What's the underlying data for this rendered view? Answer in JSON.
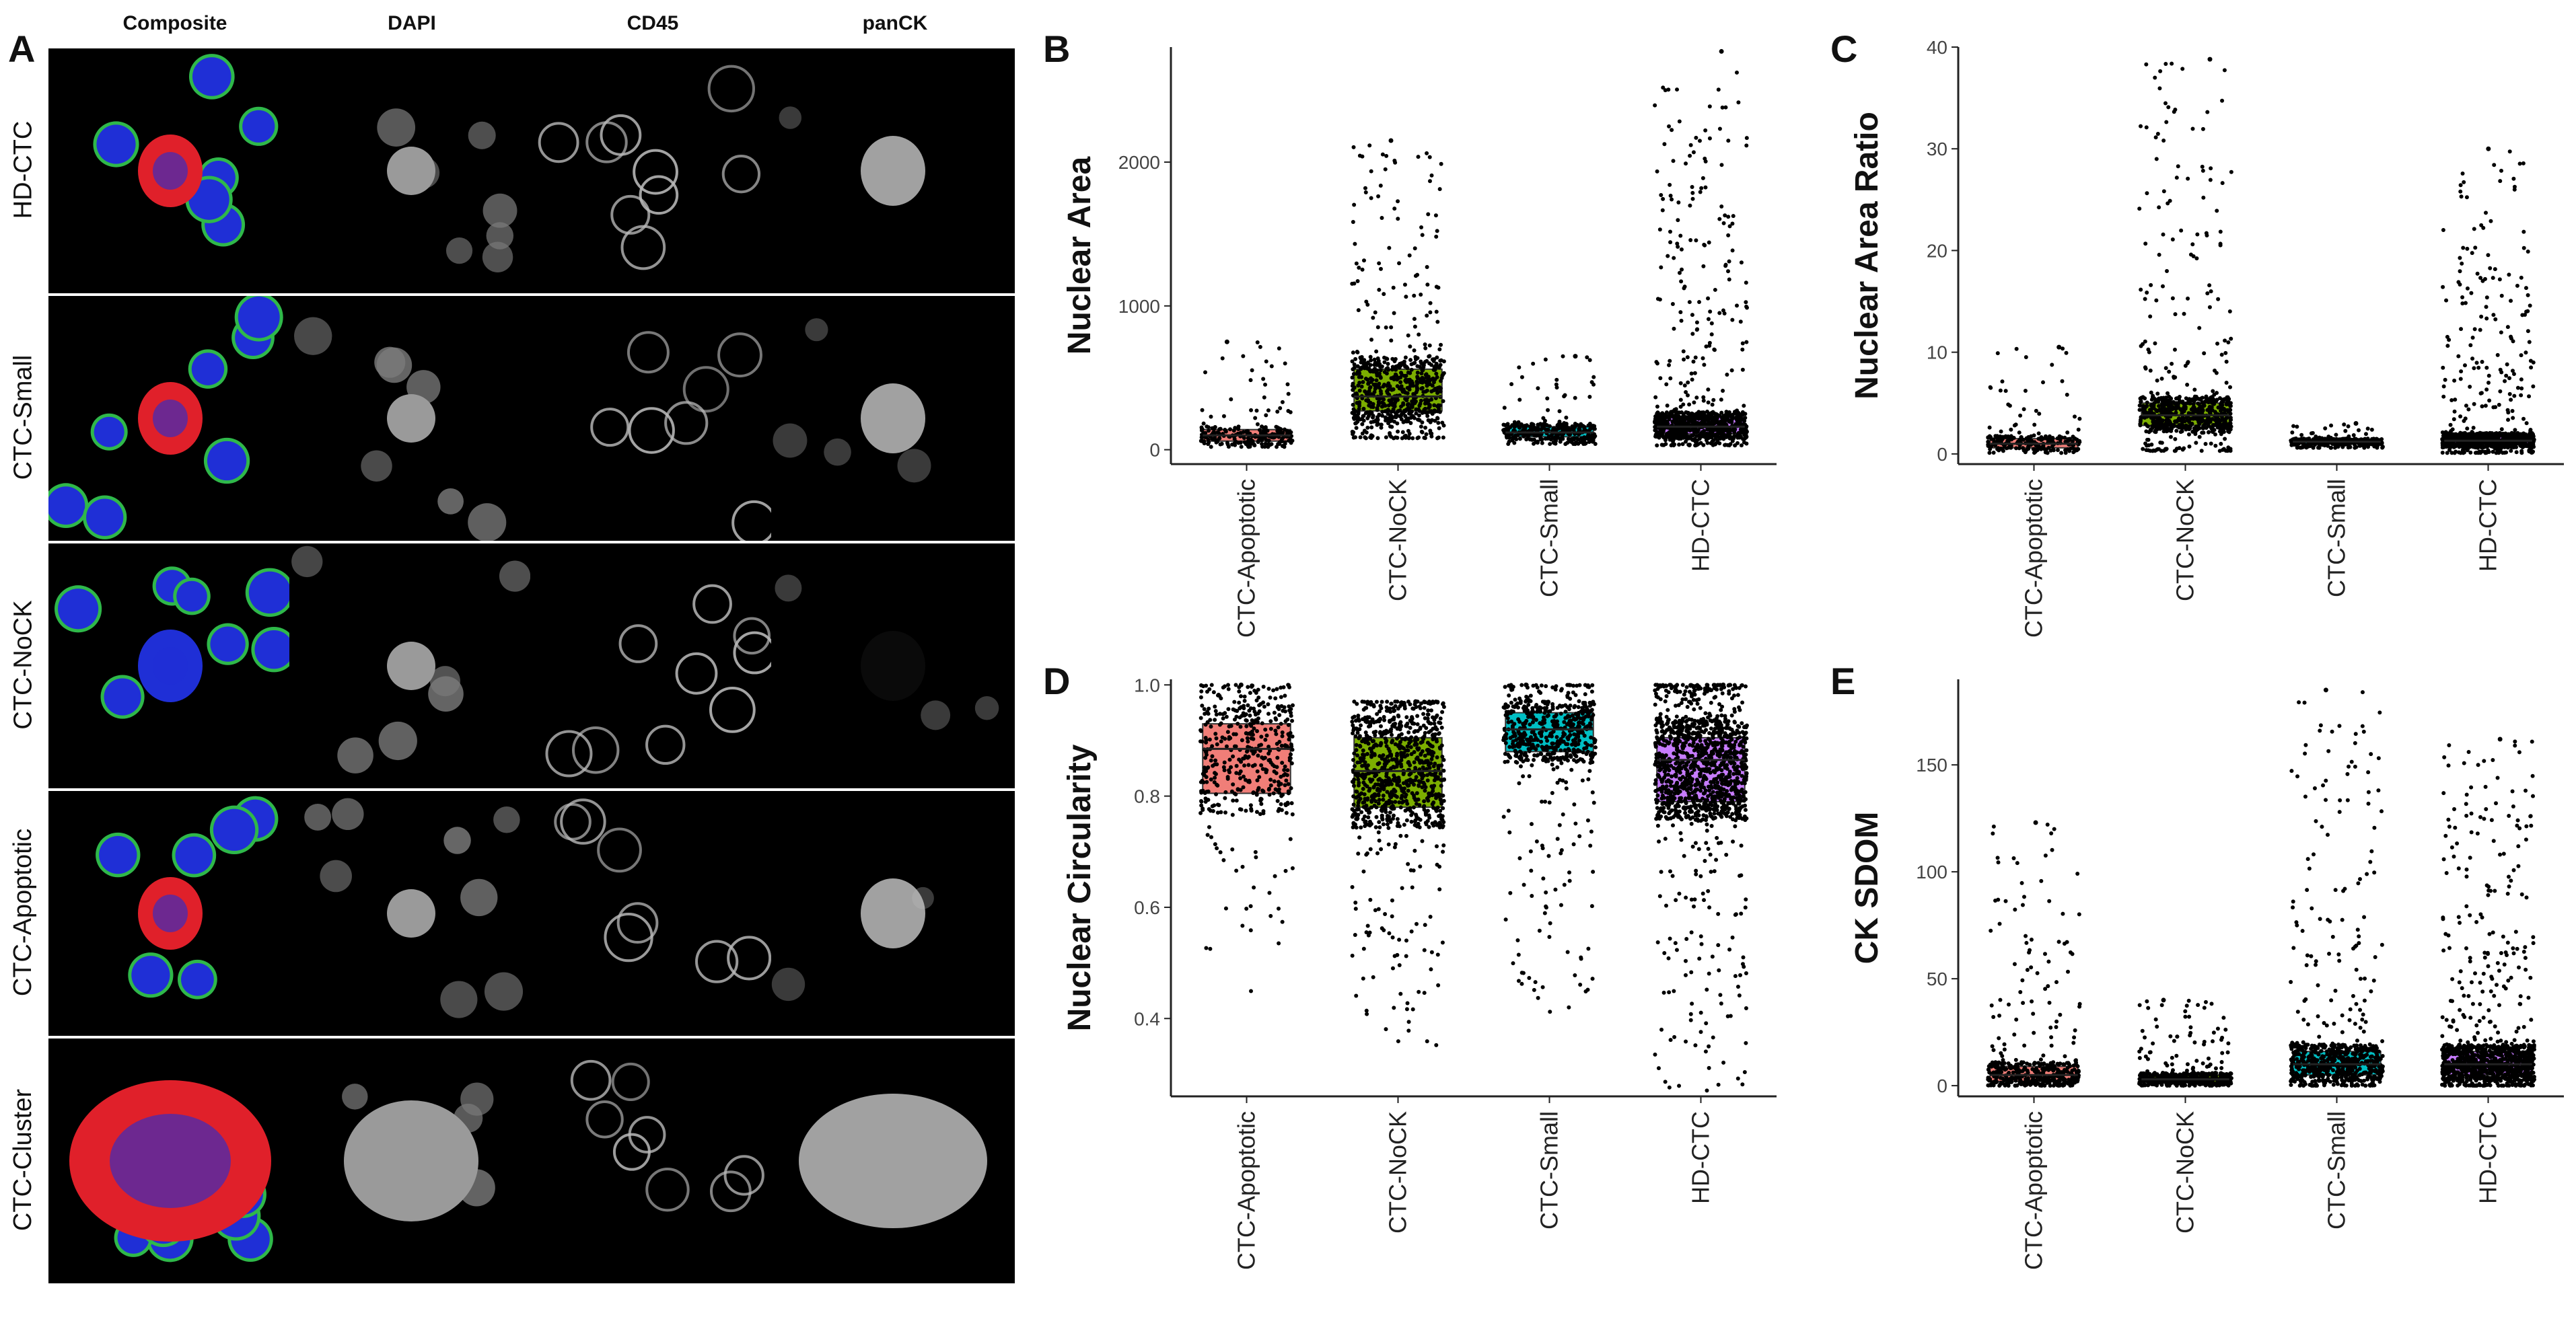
{
  "panel_letters": {
    "a": "A",
    "b": "B",
    "c": "C",
    "d": "D",
    "e": "E"
  },
  "micrograph_grid": {
    "columns": [
      "Composite",
      "DAPI",
      "CD45",
      "panCK"
    ],
    "rows": [
      "HD-CTC",
      "CTC-Small",
      "CTC-NoCK",
      "CTC-Apoptotic",
      "CTC-Cluster"
    ],
    "colors": {
      "nucleus": "#1f2fd6",
      "cd45": "#2fb84a",
      "panck": "#e0202a"
    }
  },
  "chart_data": [
    {
      "panel": "B",
      "type": "box",
      "categories": [
        "CTC-Apoptotic",
        "CTC-NoCK",
        "CTC-Small",
        "HD-CTC"
      ],
      "ylabel": "Nuclear Area",
      "ylim": [
        -100,
        2800
      ],
      "yticks": [
        0,
        1000,
        2000
      ],
      "boxes": [
        {
          "q1": 60,
          "median": 100,
          "q3": 140
        },
        {
          "q1": 270,
          "median": 370,
          "q3": 560
        },
        {
          "q1": 90,
          "median": 120,
          "q3": 160
        },
        {
          "q1": 110,
          "median": 160,
          "q3": 230
        }
      ],
      "spread": [
        [
          20,
          750
        ],
        [
          80,
          2150
        ],
        [
          40,
          650
        ],
        [
          30,
          2770
        ]
      ],
      "colors": [
        "#f07e78",
        "#7cae00",
        "#00bfc4",
        "#c77cff"
      ],
      "grid": false
    },
    {
      "panel": "C",
      "type": "box",
      "categories": [
        "CTC-Apoptotic",
        "CTC-NoCK",
        "CTC-Small",
        "HD-CTC"
      ],
      "ylabel": "Nuclear Area Ratio",
      "ylim": [
        -1,
        40
      ],
      "yticks": [
        0,
        10,
        20,
        30,
        40
      ],
      "boxes": [
        {
          "q1": 0.6,
          "median": 1.0,
          "q3": 1.5
        },
        {
          "q1": 2.8,
          "median": 3.8,
          "q3": 5.0
        },
        {
          "q1": 1.0,
          "median": 1.2,
          "q3": 1.4
        },
        {
          "q1": 0.9,
          "median": 1.3,
          "q3": 1.8
        }
      ],
      "spread": [
        [
          0.1,
          10.5
        ],
        [
          0.3,
          38.8
        ],
        [
          0.6,
          3.0
        ],
        [
          0.1,
          30
        ]
      ],
      "colors": [
        "#f07e78",
        "#7cae00",
        "#00bfc4",
        "#c77cff"
      ],
      "grid": false
    },
    {
      "panel": "D",
      "type": "box",
      "categories": [
        "CTC-Apoptotic",
        "CTC-NoCK",
        "CTC-Small",
        "HD-CTC"
      ],
      "ylabel": "Nuclear Circularity",
      "ylim": [
        0.26,
        1.01
      ],
      "yticks": [
        0.4,
        0.6,
        0.8,
        1.0
      ],
      "ytick_labels": [
        "0.4",
        "0.6",
        "0.8",
        "1.0"
      ],
      "boxes": [
        {
          "q1": 0.805,
          "median": 0.885,
          "q3": 0.93
        },
        {
          "q1": 0.78,
          "median": 0.845,
          "q3": 0.905
        },
        {
          "q1": 0.88,
          "median": 0.92,
          "q3": 0.95
        },
        {
          "q1": 0.79,
          "median": 0.865,
          "q3": 0.905
        }
      ],
      "spread": [
        [
          0.44,
          1.0
        ],
        [
          0.35,
          0.97
        ],
        [
          0.41,
          1.0
        ],
        [
          0.27,
          1.0
        ]
      ],
      "colors": [
        "#f07e78",
        "#7cae00",
        "#00bfc4",
        "#c77cff"
      ],
      "grid": false
    },
    {
      "panel": "E",
      "type": "box",
      "categories": [
        "CTC-Apoptotic",
        "CTC-NoCK",
        "CTC-Small",
        "HD-CTC"
      ],
      "ylabel": "CK SDOM",
      "ylim": [
        -5,
        190
      ],
      "yticks": [
        0,
        50,
        100,
        150
      ],
      "boxes": [
        {
          "q1": 2,
          "median": 5,
          "q3": 9
        },
        {
          "q1": 1.5,
          "median": 3,
          "q3": 5
        },
        {
          "q1": 5,
          "median": 10,
          "q3": 16
        },
        {
          "q1": 5,
          "median": 10,
          "q3": 16
        }
      ],
      "spread": [
        [
          0,
          123
        ],
        [
          0,
          40
        ],
        [
          0,
          185
        ],
        [
          0,
          162
        ]
      ],
      "colors": [
        "#f07e78",
        "#7cae00",
        "#00bfc4",
        "#c77cff"
      ],
      "grid": false
    }
  ]
}
